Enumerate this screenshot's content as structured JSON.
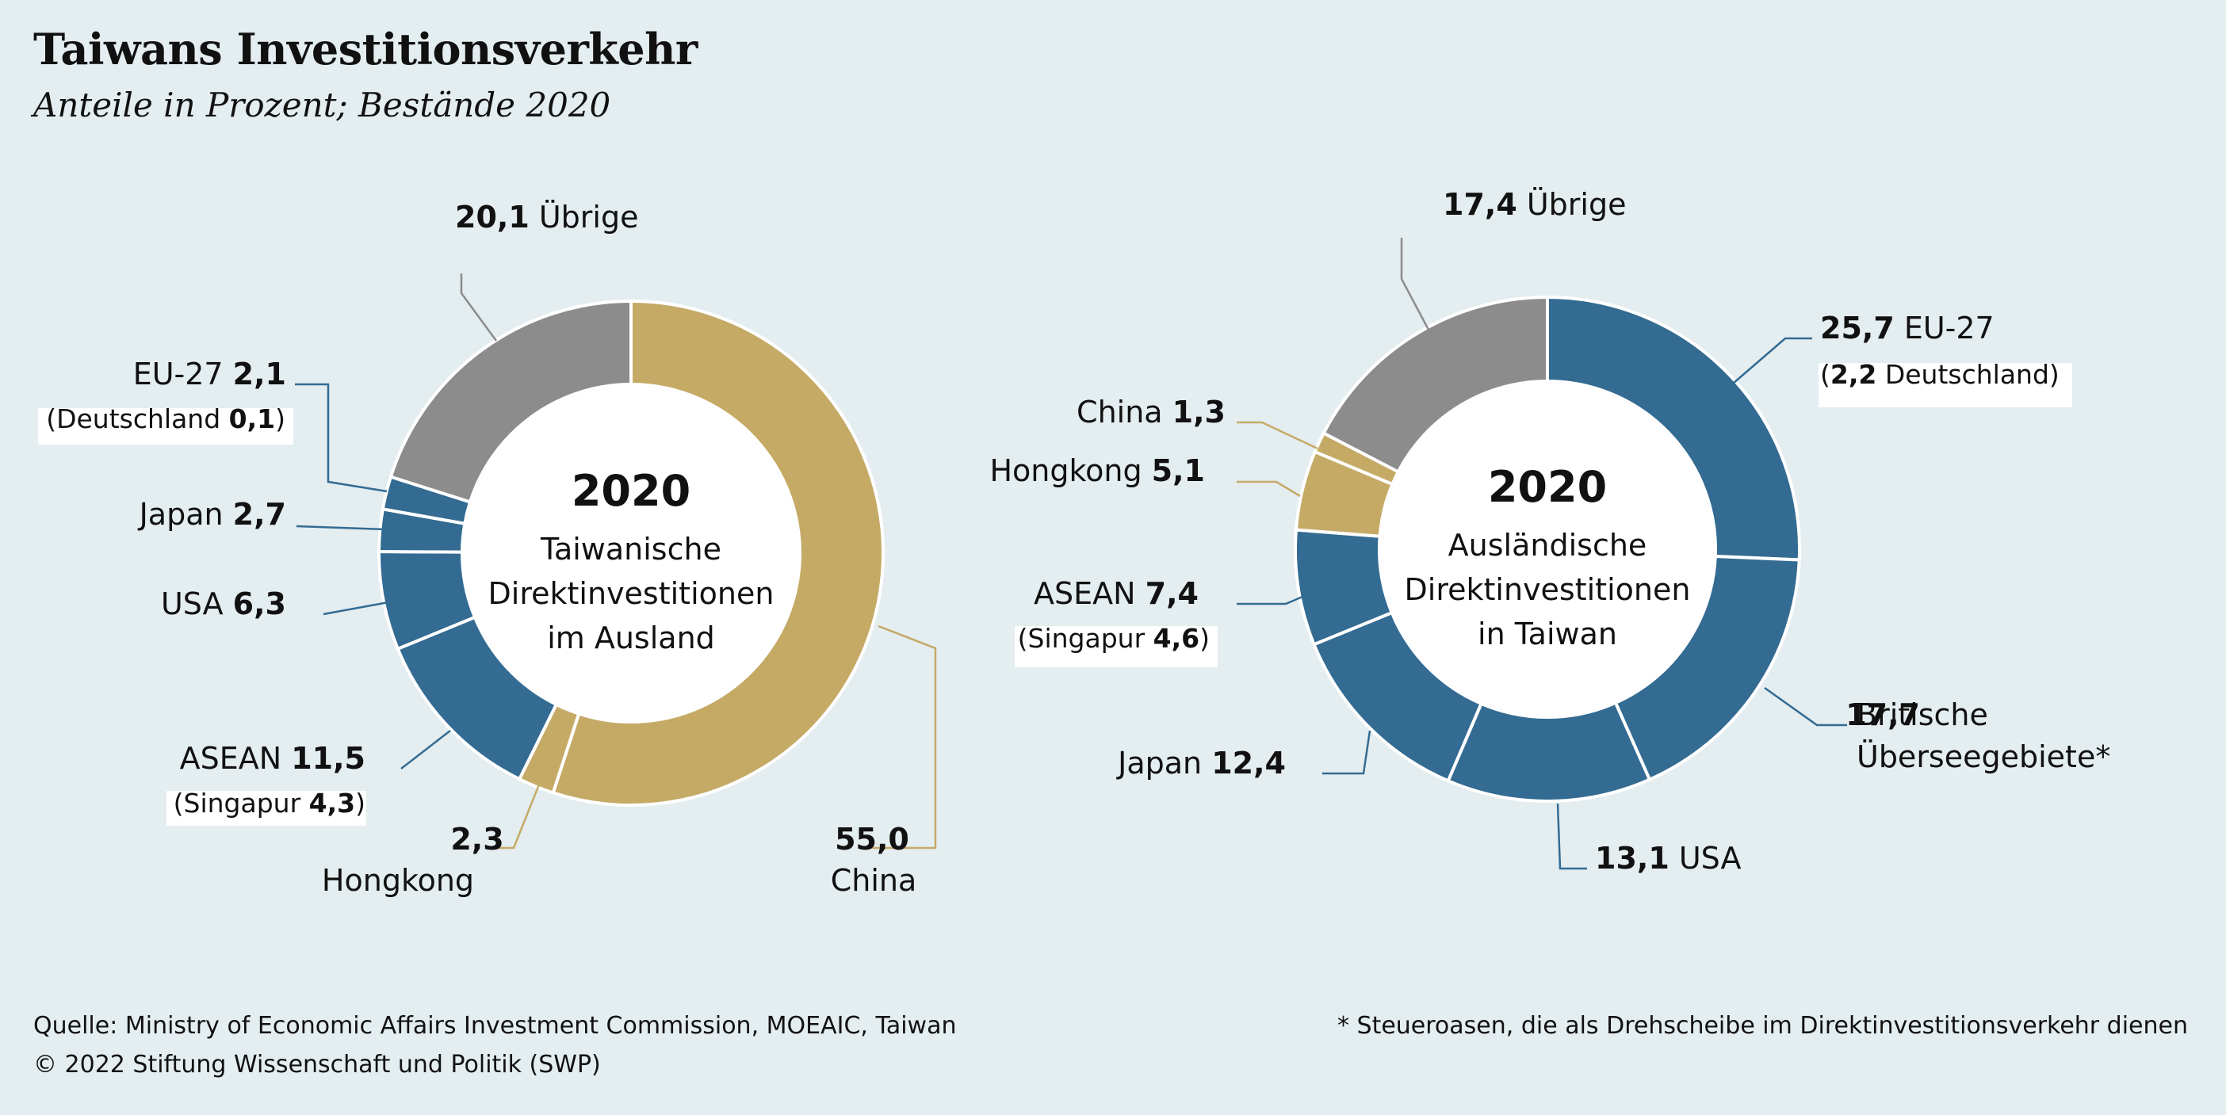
{
  "title": "Taiwans Investitionsverkehr",
  "subtitle": "Anteile in Prozent; Bestände 2020",
  "colors": {
    "china_hk": "#c5aa66",
    "blue": "#336b92",
    "grey": "#8c8c8c",
    "background": "#e4edf0"
  },
  "chart_data": [
    {
      "type": "pie",
      "center_year": "2020",
      "center_lines": [
        "Taiwanische",
        "Direktinvestitionen",
        "im Ausland"
      ],
      "slices": [
        {
          "label": "China",
          "value": 55.0,
          "value_text": "55,0",
          "color": "#c5aa66"
        },
        {
          "label": "Hongkong",
          "value": 2.3,
          "value_text": "2,3",
          "color": "#c5aa66"
        },
        {
          "label": "ASEAN",
          "value": 11.5,
          "value_text": "11,5",
          "color": "#336b92",
          "sub_label": "Singapur",
          "sub_value_text": "4,3"
        },
        {
          "label": "USA",
          "value": 6.3,
          "value_text": "6,3",
          "color": "#336b92"
        },
        {
          "label": "Japan",
          "value": 2.7,
          "value_text": "2,7",
          "color": "#336b92"
        },
        {
          "label": "EU-27",
          "value": 2.1,
          "value_text": "2,1",
          "color": "#336b92",
          "sub_label": "Deutschland",
          "sub_value_text": "0,1"
        },
        {
          "label": "Übrige",
          "value": 20.1,
          "value_text": "20,1",
          "color": "#8c8c8c"
        }
      ]
    },
    {
      "type": "pie",
      "center_year": "2020",
      "center_lines": [
        "Ausländische",
        "Direktinvestitionen",
        "in Taiwan"
      ],
      "slices": [
        {
          "label": "EU-27",
          "value": 25.7,
          "value_text": "25,7",
          "color": "#336b92",
          "sub_label": "Deutschland",
          "sub_value_text": "2,2"
        },
        {
          "label": "Britische Überseegebiete*",
          "label_lines": [
            "Britische",
            "Überseegebiete*"
          ],
          "value": 17.7,
          "value_text": "17,7",
          "color": "#336b92"
        },
        {
          "label": "USA",
          "value": 13.1,
          "value_text": "13,1",
          "color": "#336b92"
        },
        {
          "label": "Japan",
          "value": 12.4,
          "value_text": "12,4",
          "color": "#336b92"
        },
        {
          "label": "ASEAN",
          "value": 7.4,
          "value_text": "7,4",
          "color": "#336b92",
          "sub_label": "Singapur",
          "sub_value_text": "4,6"
        },
        {
          "label": "Hongkong",
          "value": 5.1,
          "value_text": "5,1",
          "color": "#c5aa66"
        },
        {
          "label": "China",
          "value": 1.3,
          "value_text": "1,3",
          "color": "#c5aa66"
        },
        {
          "label": "Übrige",
          "value": 17.4,
          "value_text": "17,4",
          "color": "#8c8c8c"
        }
      ]
    }
  ],
  "footer": {
    "source": "Quelle: Ministry of Economic Affairs Investment Commission, MOEAIC, Taiwan",
    "copyright": "© 2022 Stiftung Wissenschaft und Politik (SWP)",
    "footnote": "* Steueroasen, die als Drehscheibe im Direktinvestitionsverkehr dienen"
  }
}
